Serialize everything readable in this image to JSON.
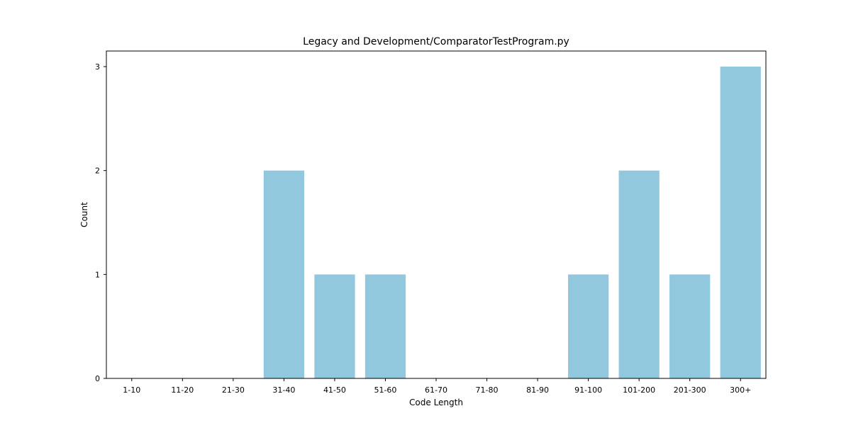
{
  "chart_data": {
    "type": "bar",
    "title": "Legacy and Development/ComparatorTestProgram.py",
    "xlabel": "Code Length",
    "ylabel": "Count",
    "categories": [
      "1-10",
      "11-20",
      "21-30",
      "31-40",
      "41-50",
      "51-60",
      "61-70",
      "71-80",
      "81-90",
      "91-100",
      "101-200",
      "201-300",
      "300+"
    ],
    "values": [
      0,
      0,
      0,
      2,
      1,
      1,
      0,
      0,
      0,
      1,
      2,
      1,
      3
    ],
    "ylim": [
      0,
      3.15
    ],
    "yticks": [
      0,
      1,
      2,
      3
    ],
    "grid": false,
    "legend": "none",
    "bar_color": "#92c8de"
  }
}
